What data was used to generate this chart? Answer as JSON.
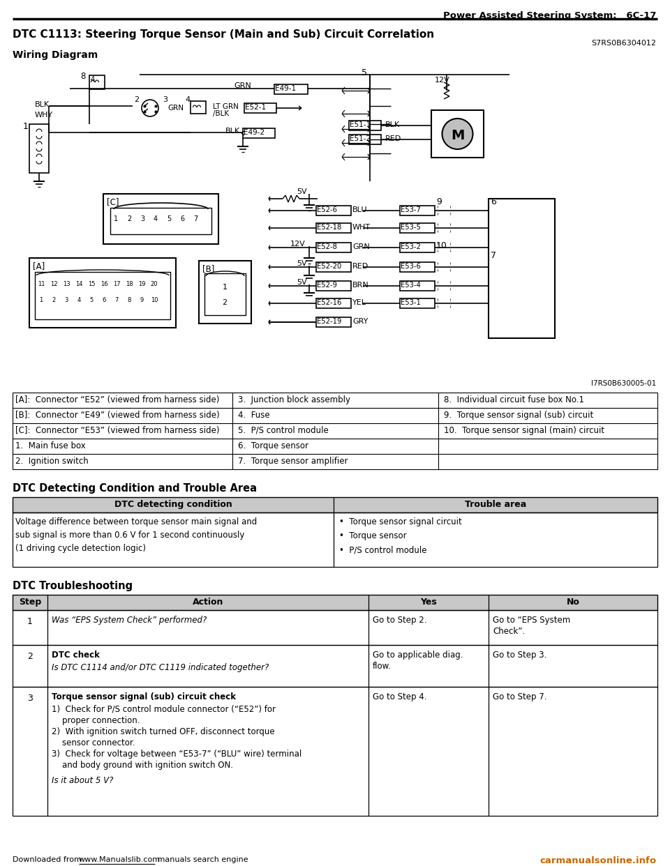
{
  "page_header_right": "Power Assisted Steering System:   6C-17",
  "title": "DTC C1113: Steering Torque Sensor (Main and Sub) Circuit Correlation",
  "subtitle_code": "S7RS0B6304012",
  "wiring_diagram_label": "Wiring Diagram",
  "legend_rows": [
    [
      "[A]:  Connector “E52” (viewed from harness side)",
      "3.  Junction block assembly",
      "8.  Individual circuit fuse box No.1"
    ],
    [
      "[B]:  Connector “E49” (viewed from harness side)",
      "4.  Fuse",
      "9.  Torque sensor signal (sub) circuit"
    ],
    [
      "[C]:  Connector “E53” (viewed from harness side)",
      "5.  P/S control module",
      "10.  Torque sensor signal (main) circuit"
    ],
    [
      "1.  Main fuse box",
      "6.  Torque sensor",
      ""
    ],
    [
      "2.  Ignition switch",
      "7.  Torque sensor amplifier",
      ""
    ]
  ],
  "dtc_section_title": "DTC Detecting Condition and Trouble Area",
  "dtc_headers": [
    "DTC detecting condition",
    "Trouble area"
  ],
  "dtc_condition": "Voltage difference between torque sensor main signal and\nsub signal is more than 0.6 V for 1 second continuously\n(1 driving cycle detection logic)",
  "dtc_trouble": "•  Torque sensor signal circuit\n•  Torque sensor\n•  P/S control module",
  "ts_section_title": "DTC Troubleshooting",
  "ts_headers": [
    "Step",
    "Action",
    "Yes",
    "No"
  ],
  "ts_rows": [
    {
      "step": "1",
      "action_italic": "Was “EPS System Check” performed?",
      "action_bold": "",
      "action_normal": "",
      "action_extra": [],
      "action_italic2": "",
      "yes": "Go to Step 2.",
      "no": "Go to “EPS System\nCheck”."
    },
    {
      "step": "2",
      "action_italic": "",
      "action_bold": "DTC check",
      "action_normal": "",
      "action_extra": [],
      "action_italic2": "Is DTC C1114 and/or DTC C1119 indicated together?",
      "yes": "Go to applicable diag.\nflow.",
      "no": "Go to Step 3."
    },
    {
      "step": "3",
      "action_italic": "",
      "action_bold": "Torque sensor signal (sub) circuit check",
      "action_normal": "",
      "action_extra": [
        "1)  Check for P/S control module connector (“E52”) for",
        "    proper connection.",
        "2)  With ignition switch turned OFF, disconnect torque",
        "    sensor connector.",
        "3)  Check for voltage between “E53-7” (“BLU” wire) terminal",
        "    and body ground with ignition switch ON."
      ],
      "action_italic2": "Is it about 5 V?",
      "yes": "Go to Step 4.",
      "no": "Go to Step 7."
    }
  ],
  "footer_left": "Downloaded from www.Manualslib.com manuals search engine",
  "footer_url": "www.Manualslib.com",
  "footer_right": "carmanualsonline.info",
  "image_ref": "I7RS0B630005-01",
  "bg_color": "#ffffff"
}
